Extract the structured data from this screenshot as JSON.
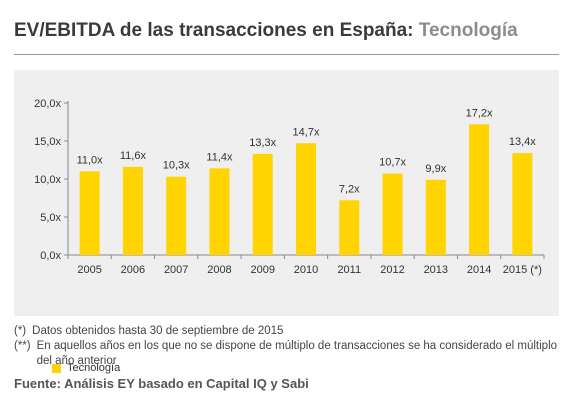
{
  "title": {
    "main": "EV/EBITDA de las transacciones en España:",
    "sub": "Tecnología"
  },
  "colors": {
    "bar": "#ffd400",
    "panel": "#efefef",
    "axis": "#888888",
    "text": "#333333"
  },
  "chart_data": {
    "type": "bar",
    "categories": [
      "2005",
      "2006",
      "2007",
      "2008",
      "2009",
      "2010",
      "2011",
      "2012",
      "2013",
      "2014",
      "2015 (*)"
    ],
    "series": [
      {
        "name": "Tecnología",
        "values": [
          11.0,
          11.6,
          10.3,
          11.4,
          13.3,
          14.7,
          7.2,
          10.7,
          9.9,
          17.2,
          13.4
        ],
        "labels": [
          "11,0x",
          "11,6x",
          "10,3x",
          "11,4x",
          "13,3x",
          "14,7x",
          "7,2x",
          "10,7x",
          "9,9x",
          "17,2x",
          "13,4x"
        ]
      }
    ],
    "ylim": [
      0,
      20
    ],
    "yticks": [
      0,
      5,
      10,
      15,
      20
    ],
    "ytick_labels": [
      "0,0x",
      "5,0x",
      "10,0x",
      "15,0x",
      "20,0x"
    ],
    "xlabel": "",
    "ylabel": "",
    "legend": "bottom-left",
    "grid": false
  },
  "legend": {
    "label": "Tecnología"
  },
  "notes": [
    {
      "mark": "(*)",
      "text": "Datos obtenidos hasta 30 de septiembre de 2015"
    },
    {
      "mark": "(**)",
      "text": "En aquellos años en los que no se dispone de múltiplo de transacciones se ha considerado el múltiplo del año anterior"
    }
  ],
  "source": "Fuente: Análisis EY basado en Capital IQ y Sabi"
}
